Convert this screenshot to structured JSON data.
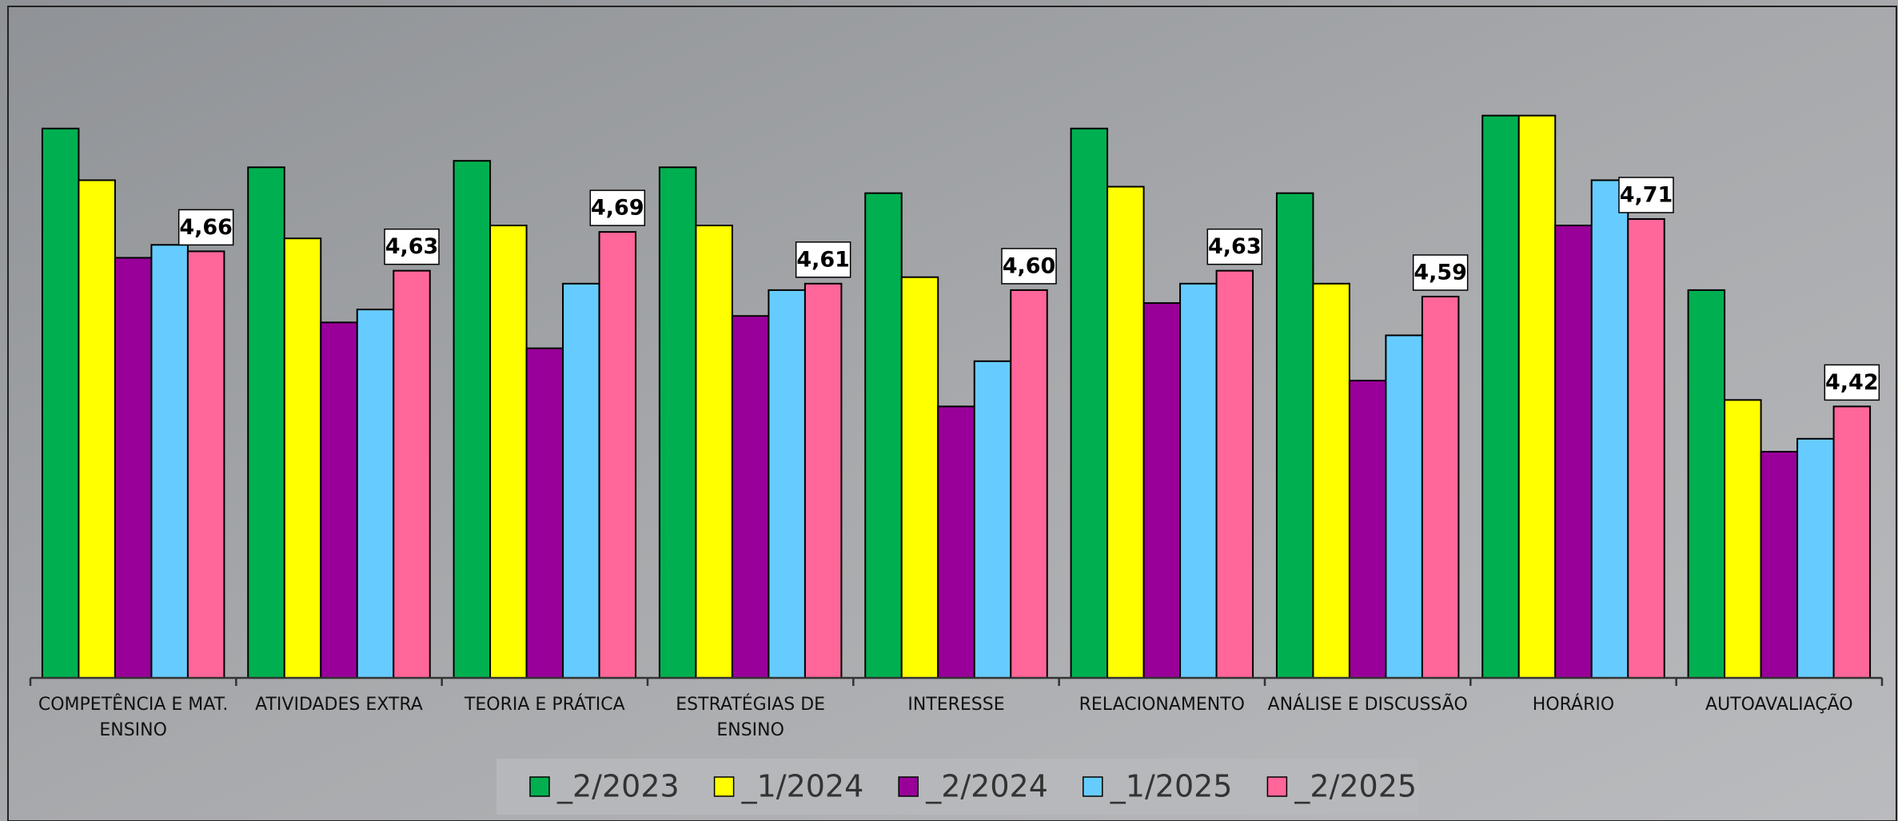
{
  "chart_data": {
    "type": "bar",
    "categories": [
      "COMPETÊNCIA E MAT. ENSINO",
      "ATIVIDADES EXTRA",
      "TEORIA E PRÁTICA",
      "ESTRATÉGIAS DE ENSINO",
      "INTERESSE",
      "RELACIONAMENTO",
      "ANÁLISE E DISCUSSÃO",
      "HORÁRIO",
      "AUTOAVALIAÇÃO"
    ],
    "series": [
      {
        "name": "_2/2023",
        "color": "#00b050",
        "values": [
          4.85,
          4.79,
          4.8,
          4.79,
          4.75,
          4.85,
          4.75,
          4.87,
          4.6
        ]
      },
      {
        "name": "_1/2024",
        "color": "#ffff00",
        "values": [
          4.77,
          4.68,
          4.7,
          4.7,
          4.62,
          4.76,
          4.61,
          4.87,
          4.43
        ]
      },
      {
        "name": "_2/2024",
        "color": "#990099",
        "values": [
          4.65,
          4.55,
          4.51,
          4.56,
          4.42,
          4.58,
          4.46,
          4.7,
          4.35
        ]
      },
      {
        "name": "_1/2025",
        "color": "#66ccff",
        "values": [
          4.67,
          4.57,
          4.61,
          4.6,
          4.49,
          4.61,
          4.53,
          4.77,
          4.37
        ]
      },
      {
        "name": "_2/2025",
        "color": "#ff6699",
        "values": [
          4.66,
          4.63,
          4.69,
          4.61,
          4.6,
          4.63,
          4.59,
          4.71,
          4.42
        ],
        "value_labels": [
          "4,66",
          "4,63",
          "4,69",
          "4,61",
          "4,60",
          "4,63",
          "4,59",
          "4,71",
          "4,42"
        ]
      }
    ],
    "ylim": [
      4,
      4.94
    ],
    "legend": "bottom"
  }
}
